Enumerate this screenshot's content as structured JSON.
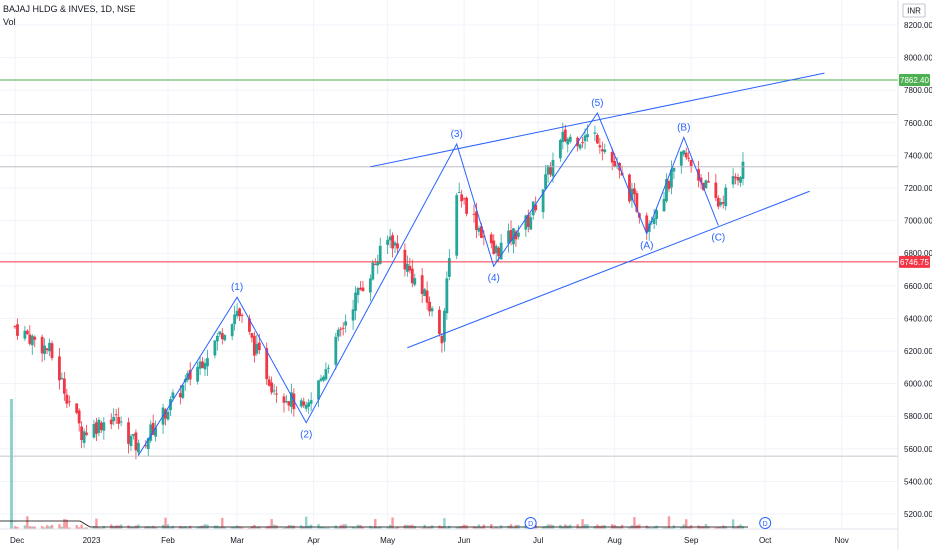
{
  "header": {
    "title": "BAJAJ HLDG & INVES, 1D, NSE",
    "volume_label": "Vol"
  },
  "currency": "INR",
  "price_axis": {
    "min": 5100,
    "max": 8350,
    "ticks": [
      "8200.00",
      "8000.00",
      "7800.00",
      "7600.00",
      "7400.00",
      "7200.00",
      "7000.00",
      "6800.00",
      "6600.00",
      "6400.00",
      "6200.00",
      "6000.00",
      "5800.00",
      "5600.00",
      "5400.00",
      "5200.00"
    ],
    "tick_values": [
      8200,
      8000,
      7800,
      7600,
      7400,
      7200,
      7000,
      6800,
      6600,
      6400,
      6200,
      6000,
      5800,
      5600,
      5400,
      5200
    ]
  },
  "time_axis": {
    "labels": [
      "Dec",
      "2023",
      "Feb",
      "Mar",
      "Apr",
      "May",
      "Jun",
      "Jul",
      "Aug",
      "Sep",
      "Oct",
      "Nov"
    ]
  },
  "horizontal_lines": [
    {
      "value": 7862.4,
      "label": "7862.40",
      "color": "#4caf50"
    },
    {
      "value": 6746.75,
      "label": "6746.75",
      "color": "#f23645"
    },
    {
      "value": 7650,
      "label": "",
      "color": "#b2b5be"
    },
    {
      "value": 7330,
      "label": "",
      "color": "#b2b5be"
    },
    {
      "value": 5555,
      "label": "",
      "color": "#b2b5be"
    }
  ],
  "wave_labels": [
    "(1)",
    "(2)",
    "(3)",
    "(4)",
    "(5)",
    "(A)",
    "(B)",
    "(C)"
  ],
  "event_markers": [
    "D",
    "D"
  ],
  "colors": {
    "up": "#26a69a",
    "down": "#f23645",
    "wave": "#2962ff",
    "grid": "#f0f3fa"
  },
  "chart_data": {
    "type": "candlestick",
    "title": "BAJAJ HLDG & INVES, 1D, NSE",
    "ylabel": "INR",
    "ylim": [
      5100,
      8350
    ],
    "x_period": [
      "2022-12",
      "2023-11"
    ],
    "elliott_wave_points": [
      {
        "label": "",
        "date": "2023-01-20",
        "price": 5560
      },
      {
        "label": "(1)",
        "date": "2023-03-01",
        "price": 6530
      },
      {
        "label": "(2)",
        "date": "2023-03-29",
        "price": 5760
      },
      {
        "label": "(3)",
        "date": "2023-05-29",
        "price": 7470
      },
      {
        "label": "(4)",
        "date": "2023-06-13",
        "price": 6720
      },
      {
        "label": "(5)",
        "date": "2023-07-25",
        "price": 7660
      },
      {
        "label": "(A)",
        "date": "2023-08-14",
        "price": 6920
      },
      {
        "label": "(B)",
        "date": "2023-08-29",
        "price": 7510
      },
      {
        "label": "(C)",
        "date": "2023-09-12",
        "price": 6970
      }
    ],
    "close_path": [
      {
        "date": "2022-12-01",
        "close": 6350
      },
      {
        "date": "2022-12-15",
        "close": 6200
      },
      {
        "date": "2022-12-28",
        "close": 5700
      },
      {
        "date": "2023-01-10",
        "close": 5800
      },
      {
        "date": "2023-01-20",
        "close": 5600
      },
      {
        "date": "2023-02-08",
        "close": 6000
      },
      {
        "date": "2023-03-01",
        "close": 6450
      },
      {
        "date": "2023-03-15",
        "close": 6000
      },
      {
        "date": "2023-03-29",
        "close": 5820
      },
      {
        "date": "2023-04-17",
        "close": 6500
      },
      {
        "date": "2023-05-02",
        "close": 6900
      },
      {
        "date": "2023-05-17",
        "close": 6500
      },
      {
        "date": "2023-05-23",
        "close": 6300
      },
      {
        "date": "2023-05-29",
        "close": 7200
      },
      {
        "date": "2023-06-13",
        "close": 6800
      },
      {
        "date": "2023-06-27",
        "close": 7000
      },
      {
        "date": "2023-07-11",
        "close": 7500
      },
      {
        "date": "2023-07-25",
        "close": 7520
      },
      {
        "date": "2023-08-14",
        "close": 6980
      },
      {
        "date": "2023-08-29",
        "close": 7400
      },
      {
        "date": "2023-09-12",
        "close": 7100
      },
      {
        "date": "2023-09-22",
        "close": 7330
      }
    ]
  }
}
